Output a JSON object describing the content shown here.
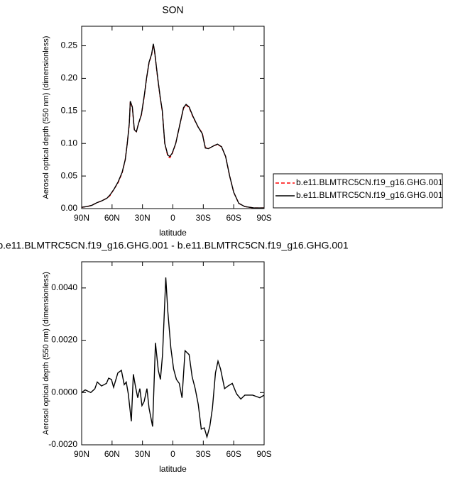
{
  "chart_data": [
    {
      "type": "line",
      "title": "SON",
      "xlabel": "latitude",
      "ylabel": "Aerosol optical depth (550 nm) (dimensionless)",
      "x": [
        90,
        85,
        80,
        75,
        70,
        65,
        62,
        58,
        54,
        50,
        47,
        45,
        43,
        42,
        40,
        38,
        36,
        34,
        31,
        28,
        26,
        23.5,
        21,
        19.3,
        18,
        15,
        12.5,
        10.5,
        8,
        5,
        3,
        0.7,
        -2.8,
        -7,
        -10.5,
        -13,
        -16,
        -20,
        -25,
        -29,
        -32,
        -35,
        -41,
        -44,
        -48,
        -52,
        -56,
        -60,
        -65,
        -71,
        -80,
        -90
      ],
      "xlim": [
        90,
        -90
      ],
      "xticks": [
        {
          "value": 90,
          "label": "90N"
        },
        {
          "value": 60,
          "label": "60N"
        },
        {
          "value": 30,
          "label": "30N"
        },
        0,
        {
          "value": -30,
          "label": "30S"
        },
        {
          "value": -60,
          "label": "60S"
        },
        {
          "value": -90,
          "label": "90S"
        }
      ],
      "ylim": [
        0,
        0.28
      ],
      "yticks": [
        {
          "value": 0,
          "label": "0.00"
        },
        {
          "value": 0.05,
          "label": "0.05"
        },
        {
          "value": 0.1,
          "label": "0.10"
        },
        {
          "value": 0.15,
          "label": "0.15"
        },
        {
          "value": 0.2,
          "label": "0.20"
        },
        {
          "value": 0.25,
          "label": "0.25"
        }
      ],
      "legend": "right",
      "series": [
        {
          "name": "b.e11.BLMTRC5CN.f19_g16.GHG.001",
          "color": "#ff0000",
          "dash": true,
          "values": [
            0.002,
            0.003,
            0.005,
            0.009,
            0.012,
            0.016,
            0.02,
            0.03,
            0.04,
            0.055,
            0.075,
            0.1,
            0.13,
            0.164,
            0.155,
            0.12,
            0.118,
            0.13,
            0.144,
            0.175,
            0.2,
            0.224,
            0.236,
            0.252,
            0.24,
            0.2,
            0.17,
            0.15,
            0.1,
            0.08,
            0.078,
            0.084,
            0.1,
            0.13,
            0.154,
            0.159,
            0.155,
            0.14,
            0.125,
            0.116,
            0.094,
            0.092,
            0.097,
            0.098,
            0.095,
            0.08,
            0.05,
            0.025,
            0.008,
            0.003,
            0.001,
            0.001
          ]
        },
        {
          "name": "b.e11.BLMTRC5CN.f19_g16.GHG.001",
          "color": "#000000",
          "dash": false,
          "values": [
            0.002,
            0.003,
            0.005,
            0.009,
            0.012,
            0.016,
            0.021,
            0.03,
            0.041,
            0.056,
            0.075,
            0.1,
            0.131,
            0.165,
            0.156,
            0.121,
            0.118,
            0.13,
            0.145,
            0.176,
            0.2,
            0.225,
            0.237,
            0.253,
            0.241,
            0.201,
            0.171,
            0.151,
            0.1,
            0.082,
            0.08,
            0.085,
            0.1,
            0.13,
            0.155,
            0.16,
            0.156,
            0.141,
            0.125,
            0.115,
            0.093,
            0.092,
            0.097,
            0.099,
            0.095,
            0.08,
            0.05,
            0.025,
            0.008,
            0.003,
            0.001,
            0.001
          ]
        }
      ]
    },
    {
      "type": "line",
      "title": "b.e11.BLMTRC5CN.f19_g16.GHG.001 - b.e11.BLMTRC5CN.f19_g16.GHG.001",
      "xlabel": "latitude",
      "ylabel": "Aerosol optical depth (550 nm) (dimensionless)",
      "x": [
        90,
        86.5,
        81,
        77,
        74.6,
        70.4,
        65.5,
        63.4,
        60.6,
        58.5,
        54.3,
        50.8,
        48,
        46,
        44,
        41,
        39,
        37,
        34.7,
        32.6,
        30.5,
        28.4,
        25.6,
        23.5,
        20,
        17.2,
        14.4,
        12.3,
        10.2,
        7,
        5,
        2,
        -0.7,
        -3.5,
        -6.3,
        -9,
        -12,
        -16,
        -19,
        -22,
        -25,
        -28,
        -31,
        -33.6,
        -36.4,
        -39,
        -42,
        -44.5,
        -47,
        -51,
        -54.4,
        -58.6,
        -62.8,
        -67,
        -71,
        -78.7,
        -85.7,
        -90
      ],
      "xlim": [
        90,
        -90
      ],
      "xticks": [
        {
          "value": 90,
          "label": "90N"
        },
        {
          "value": 60,
          "label": "60N"
        },
        {
          "value": 30,
          "label": "30N"
        },
        0,
        {
          "value": -30,
          "label": "30S"
        },
        {
          "value": -60,
          "label": "60S"
        },
        {
          "value": -90,
          "label": "90S"
        }
      ],
      "ylim": [
        -0.002,
        0.005
      ],
      "yticks": [
        {
          "value": -0.002,
          "label": "-0.0020"
        },
        {
          "value": 0,
          "label": "0.0000"
        },
        {
          "value": 0.002,
          "label": "0.0020"
        },
        {
          "value": 0.004,
          "label": "0.0040"
        }
      ],
      "series": [
        {
          "color": "#000000",
          "dash": false,
          "values": [
            0,
            0.0001,
            0,
            0.00014,
            0.0004,
            0.00025,
            0.00035,
            0.00055,
            0.0005,
            0.0002,
            0.00075,
            0.00085,
            0.0003,
            0.0004,
            -5e-05,
            -0.0011,
            0.0007,
            0.00025,
            -0.0002,
            0.00015,
            -0.0005,
            -0.00035,
            0.00015,
            -0.0006,
            -0.0013,
            0.0019,
            0.00085,
            0.0005,
            0.00145,
            0.0044,
            0.0031,
            0.0017,
            0.0009,
            0.0005,
            0.00035,
            -0.0002,
            0.0016,
            0.00145,
            0.0006,
            0.00015,
            -0.00045,
            -0.0014,
            -0.00135,
            -0.0017,
            -0.0013,
            -0.0006,
            0.00075,
            0.0012,
            0.0009,
            0.00015,
            0.00025,
            0.00035,
            -5e-05,
            -0.00025,
            -0.0001,
            -0.0001,
            -0.0002,
            -0.0001
          ]
        }
      ]
    }
  ]
}
